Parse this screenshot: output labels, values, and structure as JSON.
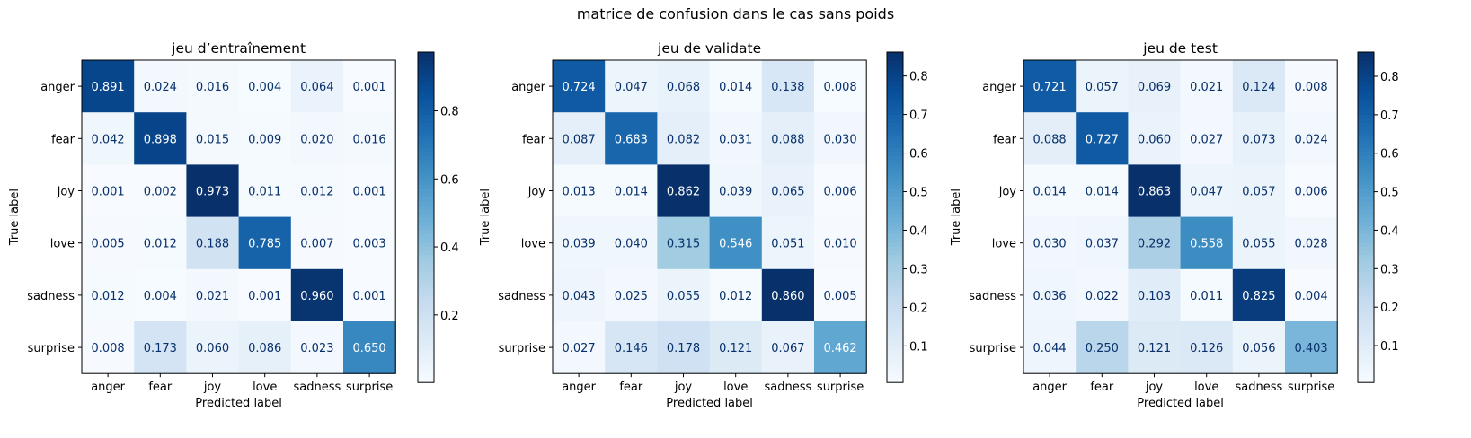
{
  "figure": {
    "suptitle": "matrice de confusion dans le cas sans poids"
  },
  "colors": {
    "cmap": "Blues",
    "low": "#f7fbff",
    "high": "#08306b",
    "dark_text": "#08306b",
    "light_text": "#ffffff"
  },
  "chart_data": [
    {
      "type": "heatmap",
      "title": "jeu d’entraînement",
      "xlabel": "Predicted label",
      "ylabel": "True label",
      "x_categories": [
        "anger",
        "fear",
        "joy",
        "love",
        "sadness",
        "surprise"
      ],
      "y_categories": [
        "anger",
        "fear",
        "joy",
        "love",
        "sadness",
        "surprise"
      ],
      "values": [
        [
          0.891,
          0.024,
          0.016,
          0.004,
          0.064,
          0.001
        ],
        [
          0.042,
          0.898,
          0.015,
          0.009,
          0.02,
          0.016
        ],
        [
          0.001,
          0.002,
          0.973,
          0.011,
          0.012,
          0.001
        ],
        [
          0.005,
          0.012,
          0.188,
          0.785,
          0.007,
          0.003
        ],
        [
          0.012,
          0.004,
          0.021,
          0.001,
          0.96,
          0.001
        ],
        [
          0.008,
          0.173,
          0.06,
          0.086,
          0.023,
          0.65
        ]
      ],
      "value_range": [
        0.001,
        0.973
      ],
      "colorbar_ticks": [
        "0.2",
        "0.4",
        "0.6",
        "0.8"
      ]
    },
    {
      "type": "heatmap",
      "title": "jeu de validate",
      "xlabel": "Predicted label",
      "ylabel": "True label",
      "x_categories": [
        "anger",
        "fear",
        "joy",
        "love",
        "sadness",
        "surprise"
      ],
      "y_categories": [
        "anger",
        "fear",
        "joy",
        "love",
        "sadness",
        "surprise"
      ],
      "values": [
        [
          0.724,
          0.047,
          0.068,
          0.014,
          0.138,
          0.008
        ],
        [
          0.087,
          0.683,
          0.082,
          0.031,
          0.088,
          0.03
        ],
        [
          0.013,
          0.014,
          0.862,
          0.039,
          0.065,
          0.006
        ],
        [
          0.039,
          0.04,
          0.315,
          0.546,
          0.051,
          0.01
        ],
        [
          0.043,
          0.025,
          0.055,
          0.012,
          0.86,
          0.005
        ],
        [
          0.027,
          0.146,
          0.178,
          0.121,
          0.067,
          0.462
        ]
      ],
      "value_range": [
        0.005,
        0.862
      ],
      "colorbar_ticks": [
        "0.1",
        "0.2",
        "0.3",
        "0.4",
        "0.5",
        "0.6",
        "0.7",
        "0.8"
      ]
    },
    {
      "type": "heatmap",
      "title": "jeu de test",
      "xlabel": "Predicted label",
      "ylabel": "True label",
      "x_categories": [
        "anger",
        "fear",
        "joy",
        "love",
        "sadness",
        "surprise"
      ],
      "y_categories": [
        "anger",
        "fear",
        "joy",
        "love",
        "sadness",
        "surprise"
      ],
      "values": [
        [
          0.721,
          0.057,
          0.069,
          0.021,
          0.124,
          0.008
        ],
        [
          0.088,
          0.727,
          0.06,
          0.027,
          0.073,
          0.024
        ],
        [
          0.014,
          0.014,
          0.863,
          0.047,
          0.057,
          0.006
        ],
        [
          0.03,
          0.037,
          0.292,
          0.558,
          0.055,
          0.028
        ],
        [
          0.036,
          0.022,
          0.103,
          0.011,
          0.825,
          0.004
        ],
        [
          0.044,
          0.25,
          0.121,
          0.126,
          0.056,
          0.403
        ]
      ],
      "value_range": [
        0.004,
        0.863
      ],
      "colorbar_ticks": [
        "0.1",
        "0.2",
        "0.3",
        "0.4",
        "0.5",
        "0.6",
        "0.7",
        "0.8"
      ]
    }
  ]
}
